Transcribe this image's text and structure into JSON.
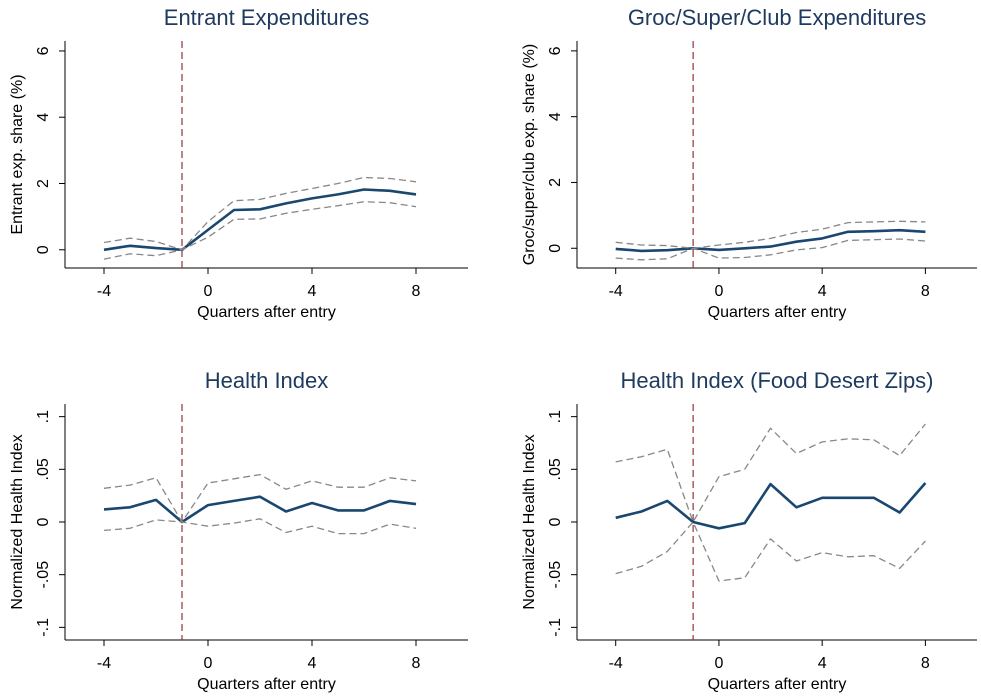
{
  "chart_data": [
    {
      "type": "line",
      "title": "Entrant Expenditures",
      "x_label": "Quarters after entry",
      "y_label": "Entrant exp. share (%)",
      "x": [
        -4,
        -3,
        -2,
        -1,
        0,
        1,
        2,
        3,
        4,
        5,
        6,
        7,
        8
      ],
      "series": [
        {
          "color": "#1a476f",
          "dash": false,
          "values": [
            0,
            0.12,
            0.05,
            0,
            0.6,
            1.2,
            1.22,
            1.4,
            1.55,
            1.67,
            1.82,
            1.78,
            1.67
          ]
        },
        {
          "color": "#888888",
          "dash": true,
          "values": [
            0.22,
            0.35,
            0.25,
            0,
            0.85,
            1.48,
            1.52,
            1.7,
            1.85,
            2.0,
            2.18,
            2.15,
            2.05
          ]
        },
        {
          "color": "#888888",
          "dash": true,
          "values": [
            -0.28,
            -0.12,
            -0.18,
            0,
            0.38,
            0.92,
            0.93,
            1.1,
            1.22,
            1.33,
            1.45,
            1.42,
            1.3
          ]
        }
      ],
      "vline": -1,
      "vline_color": "#90353b",
      "xlim": [
        -5.5,
        10
      ],
      "xticks": [
        -4,
        0,
        4,
        8
      ],
      "ylim": [
        -0.55,
        6.3
      ],
      "yticks": [
        0,
        2,
        4,
        6
      ]
    },
    {
      "type": "line",
      "title": "Groc/Super/Club Expenditures",
      "x_label": "Quarters after entry",
      "y_label": "Groc/super/club exp. share (%)",
      "x": [
        -4,
        -3,
        -2,
        -1,
        0,
        1,
        2,
        3,
        4,
        5,
        6,
        7,
        8
      ],
      "series": [
        {
          "color": "#1a476f",
          "dash": false,
          "values": [
            -0.02,
            -0.08,
            -0.06,
            0,
            -0.05,
            0,
            0.05,
            0.2,
            0.3,
            0.5,
            0.52,
            0.55,
            0.5
          ]
        },
        {
          "color": "#888888",
          "dash": true,
          "values": [
            0.18,
            0.1,
            0.08,
            0,
            0.1,
            0.18,
            0.3,
            0.48,
            0.58,
            0.78,
            0.8,
            0.82,
            0.8
          ]
        },
        {
          "color": "#888888",
          "dash": true,
          "values": [
            -0.3,
            -0.35,
            -0.32,
            0,
            -0.3,
            -0.28,
            -0.2,
            -0.05,
            0.02,
            0.24,
            0.26,
            0.28,
            0.22
          ]
        }
      ],
      "vline": -1,
      "vline_color": "#90353b",
      "xlim": [
        -5.5,
        10
      ],
      "xticks": [
        -4,
        0,
        4,
        8
      ],
      "ylim": [
        -0.6,
        6.3
      ],
      "yticks": [
        0,
        2,
        4,
        6
      ]
    },
    {
      "type": "line",
      "title": "Health Index",
      "x_label": "Quarters after entry",
      "y_label": "Normalized Health Index",
      "x": [
        -4,
        -3,
        -2,
        -1,
        0,
        1,
        2,
        3,
        4,
        5,
        6,
        7,
        8
      ],
      "series": [
        {
          "color": "#1a476f",
          "dash": false,
          "values": [
            0.012,
            0.014,
            0.021,
            0,
            0.016,
            0.02,
            0.024,
            0.01,
            0.018,
            0.011,
            0.011,
            0.02,
            0.017
          ]
        },
        {
          "color": "#888888",
          "dash": true,
          "values": [
            0.032,
            0.035,
            0.042,
            0,
            0.037,
            0.041,
            0.045,
            0.031,
            0.039,
            0.033,
            0.033,
            0.042,
            0.039
          ]
        },
        {
          "color": "#888888",
          "dash": true,
          "values": [
            -0.008,
            -0.006,
            0.002,
            0,
            -0.004,
            -0.001,
            0.003,
            -0.01,
            -0.004,
            -0.011,
            -0.011,
            -0.002,
            -0.006
          ]
        }
      ],
      "vline": -1,
      "vline_color": "#90353b",
      "xlim": [
        -5.5,
        10
      ],
      "xticks": [
        -4,
        0,
        4,
        8
      ],
      "ylim": [
        -0.112,
        0.112
      ],
      "yticks": [
        {
          "value": -0.1,
          "label": "-.1"
        },
        {
          "value": -0.05,
          "label": "-.05"
        },
        0,
        {
          "value": 0.05,
          "label": ".05"
        },
        {
          "value": 0.1,
          "label": ".1"
        }
      ]
    },
    {
      "type": "line",
      "title": "Health Index (Food Desert Zips)",
      "x_label": "Quarters after entry",
      "y_label": "Normalized Health Index",
      "x": [
        -4,
        -3,
        -2,
        -1,
        0,
        1,
        2,
        3,
        4,
        5,
        6,
        7,
        8
      ],
      "series": [
        {
          "color": "#1a476f",
          "dash": false,
          "values": [
            0.004,
            0.01,
            0.02,
            0,
            -0.006,
            -0.001,
            0.036,
            0.014,
            0.023,
            0.023,
            0.023,
            0.009,
            0.037
          ]
        },
        {
          "color": "#888888",
          "dash": true,
          "values": [
            0.057,
            0.062,
            0.069,
            0,
            0.043,
            0.05,
            0.089,
            0.065,
            0.076,
            0.079,
            0.078,
            0.063,
            0.093
          ]
        },
        {
          "color": "#888888",
          "dash": true,
          "values": [
            -0.049,
            -0.042,
            -0.028,
            0,
            -0.056,
            -0.053,
            -0.016,
            -0.037,
            -0.029,
            -0.033,
            -0.032,
            -0.044,
            -0.018
          ]
        }
      ],
      "vline": -1,
      "vline_color": "#90353b",
      "xlim": [
        -5.5,
        10
      ],
      "xticks": [
        -4,
        0,
        4,
        8
      ],
      "ylim": [
        -0.112,
        0.112
      ],
      "yticks": [
        {
          "value": -0.1,
          "label": "-.1"
        },
        {
          "value": -0.05,
          "label": "-.05"
        },
        0,
        {
          "value": 0.05,
          "label": ".05"
        },
        {
          "value": 0.1,
          "label": ".1"
        }
      ]
    }
  ]
}
